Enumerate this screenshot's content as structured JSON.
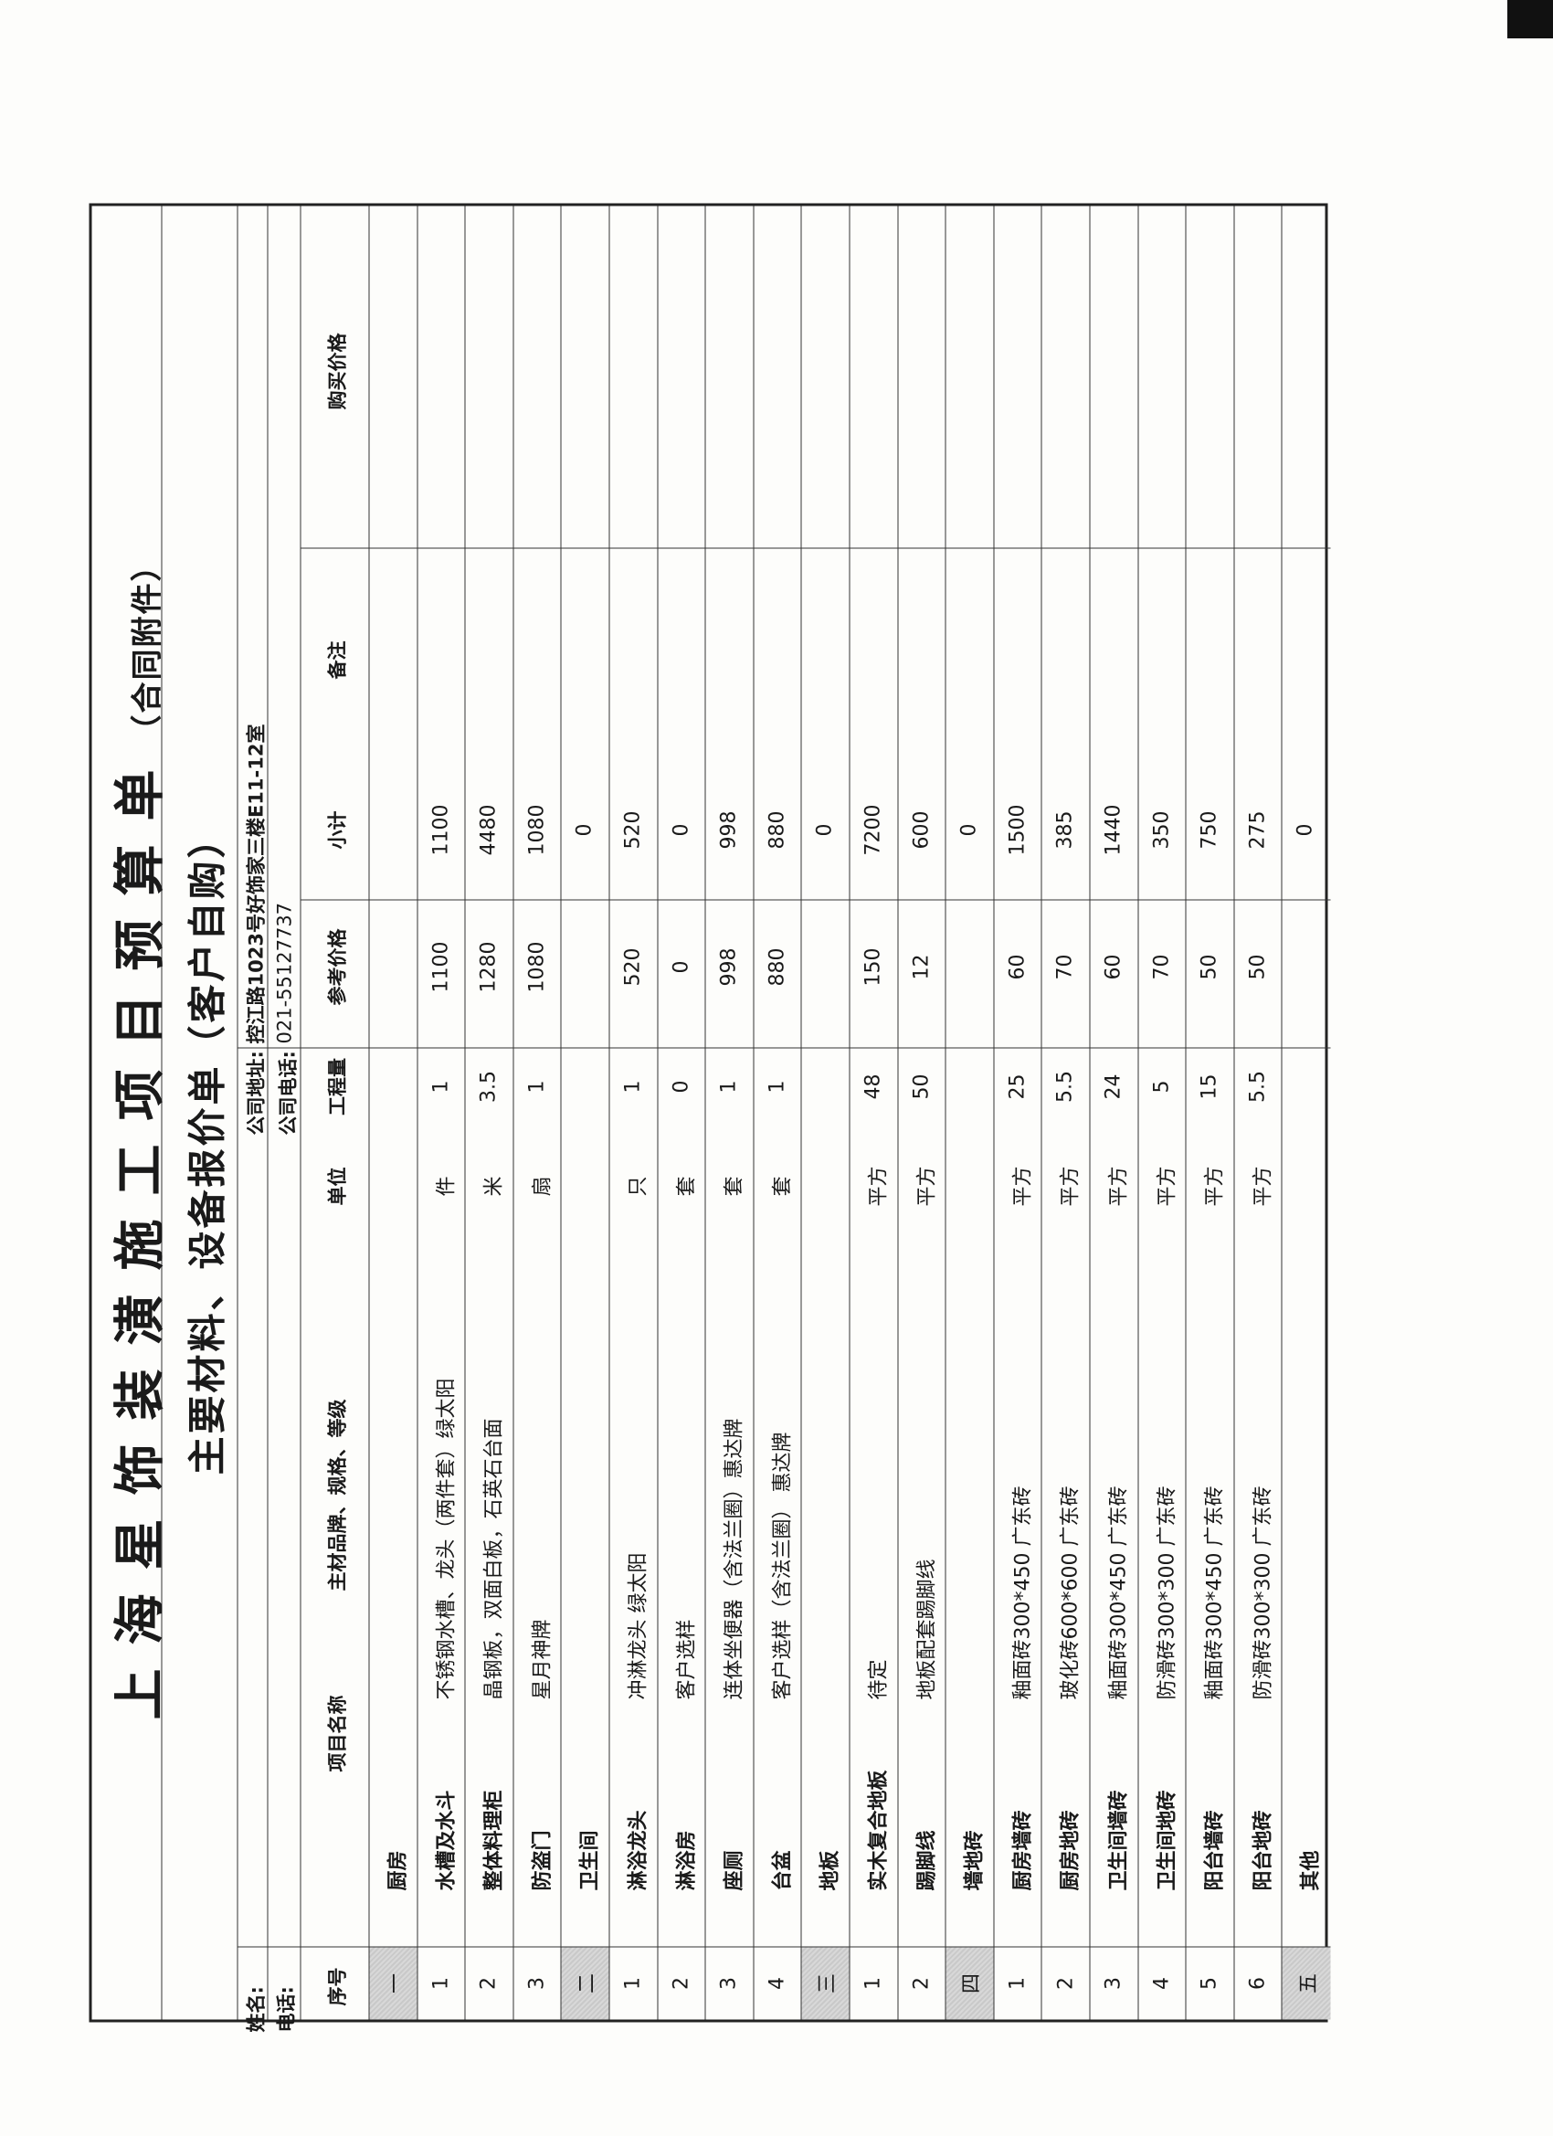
{
  "document": {
    "title": "上海星饰装潢施工项目预算单",
    "title_note": "（合同附件）",
    "subtitle": "主要材料、设备报价单（客户自购）",
    "customer_name_label": "姓名:",
    "customer_phone_label": "电话:",
    "company_address_label": "公司地址:",
    "company_address": "控江路1023号好饰家三楼E11-12室",
    "company_phone_label": "公司电话:",
    "company_phone": "021-55127737"
  },
  "table": {
    "headers": {
      "no": "序号",
      "item": "项目名称",
      "spec": "主材品牌、规格、等级",
      "unit": "单位",
      "qty": "工程量",
      "price": "参考价格",
      "subtotal": "小计",
      "remark": "备注",
      "purchase": "购买价格"
    },
    "rows": [
      {
        "no": "一",
        "name": "厨房",
        "section": true,
        "spec": "",
        "unit": "",
        "qty": "",
        "price": "",
        "subtotal": ""
      },
      {
        "no": "1",
        "name": "水槽及水斗",
        "spec": "不锈钢水槽、龙头（两件套）绿太阳",
        "unit": "件",
        "qty": "1",
        "price": "1100",
        "subtotal": "1100"
      },
      {
        "no": "2",
        "name": "整体料理柜",
        "spec": "晶钢板，双面白板，石英石台面",
        "unit": "米",
        "qty": "3.5",
        "price": "1280",
        "subtotal": "4480"
      },
      {
        "no": "3",
        "name": "防盗门",
        "spec": "星月神牌",
        "unit": "扇",
        "qty": "1",
        "price": "1080",
        "subtotal": "1080"
      },
      {
        "no": "二",
        "name": "卫生间",
        "section": true,
        "spec": "",
        "unit": "",
        "qty": "",
        "price": "",
        "subtotal": "0"
      },
      {
        "no": "1",
        "name": "淋浴龙头",
        "spec": "冲淋龙头 绿太阳",
        "unit": "只",
        "qty": "1",
        "price": "520",
        "subtotal": "520"
      },
      {
        "no": "2",
        "name": "淋浴房",
        "spec": "客户选样",
        "unit": "套",
        "qty": "0",
        "price": "0",
        "subtotal": "0"
      },
      {
        "no": "3",
        "name": "座厕",
        "spec": "连体坐便器（含法兰圈）惠达牌",
        "unit": "套",
        "qty": "1",
        "price": "998",
        "subtotal": "998"
      },
      {
        "no": "4",
        "name": "台盆",
        "spec": "客户选样（含法兰圈） 惠达牌",
        "unit": "套",
        "qty": "1",
        "price": "880",
        "subtotal": "880"
      },
      {
        "no": "三",
        "name": "地板",
        "section": true,
        "spec": "",
        "unit": "",
        "qty": "",
        "price": "",
        "subtotal": "0"
      },
      {
        "no": "1",
        "name": "实木复合地板",
        "spec": "待定",
        "unit": "平方",
        "qty": "48",
        "price": "150",
        "subtotal": "7200"
      },
      {
        "no": "2",
        "name": "踢脚线",
        "spec": "地板配套踢脚线",
        "unit": "平方",
        "qty": "50",
        "price": "12",
        "subtotal": "600"
      },
      {
        "no": "四",
        "name": "墙地砖",
        "section": true,
        "spec": "",
        "unit": "",
        "qty": "",
        "price": "",
        "subtotal": "0"
      },
      {
        "no": "1",
        "name": "厨房墙砖",
        "spec": "釉面砖300*450  广东砖",
        "unit": "平方",
        "qty": "25",
        "price": "60",
        "subtotal": "1500"
      },
      {
        "no": "2",
        "name": "厨房地砖",
        "spec": "玻化砖600*600 广东砖",
        "unit": "平方",
        "qty": "5.5",
        "price": "70",
        "subtotal": "385"
      },
      {
        "no": "3",
        "name": "卫生间墙砖",
        "spec": "釉面砖300*450  广东砖",
        "unit": "平方",
        "qty": "24",
        "price": "60",
        "subtotal": "1440"
      },
      {
        "no": "4",
        "name": "卫生间地砖",
        "spec": "防滑砖300*300  广东砖",
        "unit": "平方",
        "qty": "5",
        "price": "70",
        "subtotal": "350"
      },
      {
        "no": "5",
        "name": "阳台墙砖",
        "spec": "釉面砖300*450  广东砖",
        "unit": "平方",
        "qty": "15",
        "price": "50",
        "subtotal": "750"
      },
      {
        "no": "6",
        "name": "阳台地砖",
        "spec": "防滑砖300*300  广东砖",
        "unit": "平方",
        "qty": "5.5",
        "price": "50",
        "subtotal": "275"
      },
      {
        "no": "五",
        "name": "其他",
        "section": true,
        "spec": "",
        "unit": "",
        "qty": "",
        "price": "",
        "subtotal": "0"
      }
    ]
  }
}
